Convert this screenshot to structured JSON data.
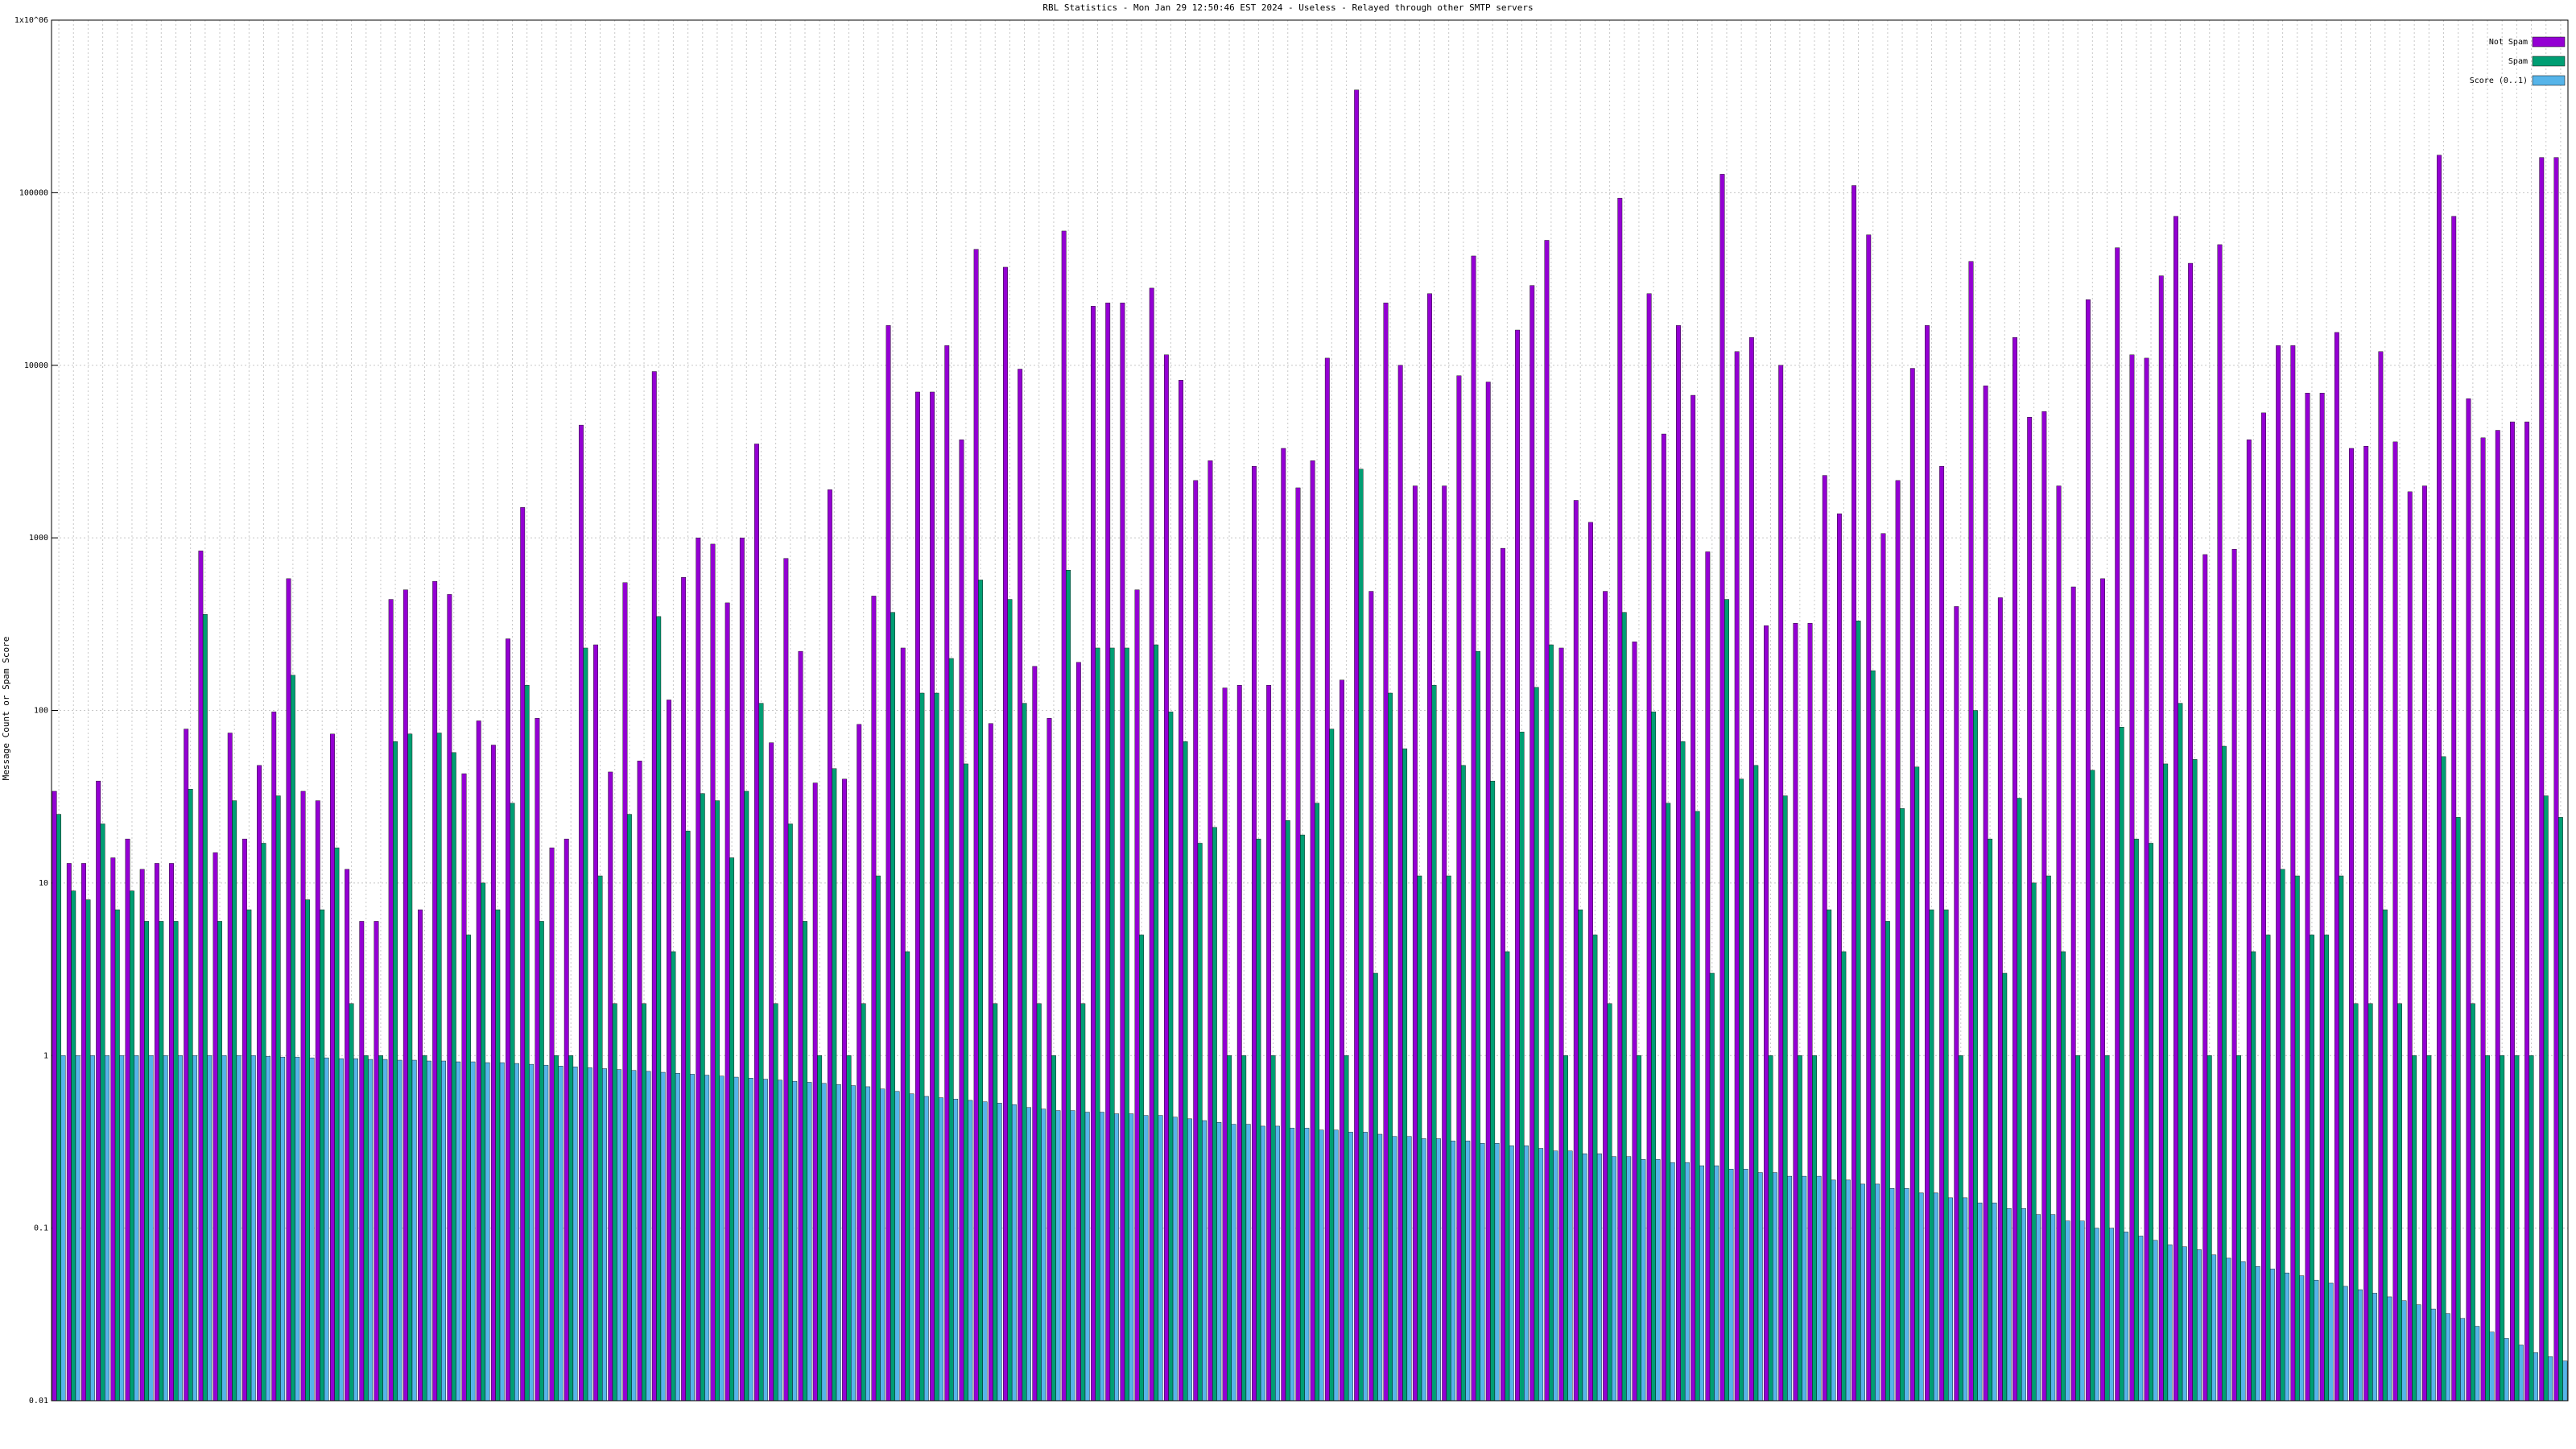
{
  "chart_data": {
    "type": "bar",
    "title": "RBL Statistics - Mon Jan 29 12:50:46 EST 2024 - Useless - Relayed through other SMTP servers",
    "y_label": "Message Count or Spam Score",
    "log_scale": true,
    "grid": true,
    "legend": "upper right",
    "ylim": [
      0.01,
      1000000
    ],
    "yticks": [
      {
        "value": 0.01,
        "label": "0.01"
      },
      {
        "value": 0.1,
        "label": "0.1"
      },
      1,
      10,
      100,
      1000,
      10000,
      100000,
      {
        "value": 1000000,
        "label": "1x10^06"
      }
    ],
    "series": [
      {
        "name": "Not Spam",
        "color": "#9400d3",
        "values": [
          34,
          13,
          13,
          39,
          14,
          18,
          12,
          13,
          13,
          78,
          840,
          15,
          74,
          18,
          48,
          98,
          580,
          34,
          30,
          73,
          12,
          6,
          6,
          440,
          500,
          7,
          560,
          470,
          43,
          87,
          63,
          260,
          1500,
          90,
          16,
          18,
          4500,
          240,
          44,
          550,
          51,
          9200,
          115,
          590,
          1000,
          920,
          420,
          1000,
          3500,
          65,
          760,
          220,
          38,
          1900,
          40,
          83,
          460,
          17000,
          230,
          7000,
          7000,
          13000,
          3700,
          47000,
          84,
          37000,
          9500,
          180,
          90,
          60000,
          190,
          22000,
          23000,
          23000,
          500,
          28000,
          11500,
          8200,
          2150,
          2800,
          135,
          140,
          2600,
          140,
          3300,
          1950,
          2800,
          11000,
          150,
          394000,
          490,
          23000,
          10000,
          2000,
          26000,
          2000,
          8700,
          43000,
          8000,
          870,
          16000,
          29000,
          53000,
          230,
          1650,
          1230,
          490,
          93000,
          250,
          26000,
          4000,
          17000,
          6700,
          830,
          128000,
          12000,
          14500,
          310,
          10000,
          320,
          320,
          2300,
          1380,
          110000,
          57000,
          1060,
          2150,
          9600,
          17000,
          2600,
          400,
          40000,
          7600,
          450,
          14500,
          5000,
          5400,
          2000,
          520,
          24000,
          580,
          48000,
          11500,
          11000,
          33000,
          73000,
          39000,
          800,
          50000,
          860,
          3700,
          5300,
          13000,
          13000,
          6900,
          6900,
          15500,
          3300,
          3400,
          12000,
          3600,
          1850,
          2000,
          165000,
          73000,
          6400,
          3800,
          4200,
          4700,
          4700,
          160000,
          160000
        ]
      },
      {
        "name": "Spam",
        "color": "#009e73",
        "values": [
          25,
          9,
          8,
          22,
          7,
          9,
          6,
          6,
          6,
          35,
          360,
          6,
          30,
          7,
          17,
          32,
          160,
          8,
          7,
          16,
          2,
          1,
          1,
          66,
          73,
          1,
          74,
          57,
          5,
          10,
          7,
          29,
          140,
          6,
          1,
          1,
          230,
          11,
          2,
          25,
          2,
          350,
          4,
          20,
          33,
          30,
          14,
          34,
          110,
          2,
          22,
          6,
          1,
          46,
          1,
          2,
          11,
          370,
          4,
          126,
          126,
          200,
          49,
          570,
          2,
          440,
          110,
          2,
          1,
          650,
          2,
          230,
          230,
          230,
          5,
          240,
          98,
          66,
          17,
          21,
          1,
          1,
          18,
          1,
          23,
          19,
          29,
          78,
          1,
          2500,
          3,
          126,
          60,
          11,
          140,
          11,
          48,
          220,
          39,
          4,
          75,
          136,
          240,
          1,
          7,
          5,
          2,
          370,
          1,
          98,
          29,
          66,
          26,
          3,
          440,
          40,
          48,
          1,
          32,
          1,
          1,
          7,
          4,
          330,
          170,
          6,
          27,
          47,
          7,
          7,
          1,
          100,
          18,
          3,
          31,
          10,
          11,
          4,
          1,
          45,
          1,
          80,
          18,
          17,
          49,
          110,
          52,
          1,
          62,
          1,
          4,
          5,
          12,
          11,
          5,
          5,
          11,
          2,
          2,
          7,
          2,
          1,
          1,
          54,
          24,
          2,
          1,
          1,
          1,
          1,
          32,
          24
        ]
      },
      {
        "name": "Score (0..1)",
        "color": "#56b4e9",
        "values": [
          1,
          1,
          1,
          1,
          1,
          1,
          1,
          1,
          1,
          1,
          1,
          1,
          1,
          1,
          0.99,
          0.98,
          0.98,
          0.97,
          0.97,
          0.96,
          0.96,
          0.95,
          0.95,
          0.94,
          0.94,
          0.93,
          0.93,
          0.92,
          0.92,
          0.91,
          0.91,
          0.9,
          0.89,
          0.88,
          0.87,
          0.86,
          0.85,
          0.84,
          0.83,
          0.82,
          0.81,
          0.8,
          0.79,
          0.78,
          0.77,
          0.76,
          0.75,
          0.74,
          0.73,
          0.72,
          0.71,
          0.7,
          0.69,
          0.68,
          0.67,
          0.66,
          0.64,
          0.62,
          0.6,
          0.58,
          0.57,
          0.56,
          0.55,
          0.54,
          0.53,
          0.52,
          0.5,
          0.49,
          0.48,
          0.48,
          0.47,
          0.47,
          0.46,
          0.46,
          0.45,
          0.45,
          0.44,
          0.43,
          0.42,
          0.41,
          0.4,
          0.4,
          0.39,
          0.39,
          0.38,
          0.38,
          0.37,
          0.37,
          0.36,
          0.36,
          0.35,
          0.34,
          0.34,
          0.33,
          0.33,
          0.32,
          0.32,
          0.31,
          0.31,
          0.3,
          0.3,
          0.29,
          0.28,
          0.28,
          0.27,
          0.27,
          0.26,
          0.26,
          0.25,
          0.25,
          0.24,
          0.24,
          0.23,
          0.23,
          0.22,
          0.22,
          0.21,
          0.21,
          0.2,
          0.2,
          0.2,
          0.19,
          0.19,
          0.18,
          0.18,
          0.17,
          0.17,
          0.16,
          0.16,
          0.15,
          0.15,
          0.14,
          0.14,
          0.13,
          0.13,
          0.12,
          0.12,
          0.11,
          0.11,
          0.1,
          0.1,
          0.095,
          0.09,
          0.085,
          0.08,
          0.078,
          0.075,
          0.07,
          0.067,
          0.064,
          0.06,
          0.058,
          0.055,
          0.053,
          0.05,
          0.048,
          0.046,
          0.044,
          0.042,
          0.04,
          0.038,
          0.036,
          0.034,
          0.032,
          0.03,
          0.027,
          0.025,
          0.023,
          0.021,
          0.019,
          0.018,
          0.017
        ]
      }
    ]
  }
}
